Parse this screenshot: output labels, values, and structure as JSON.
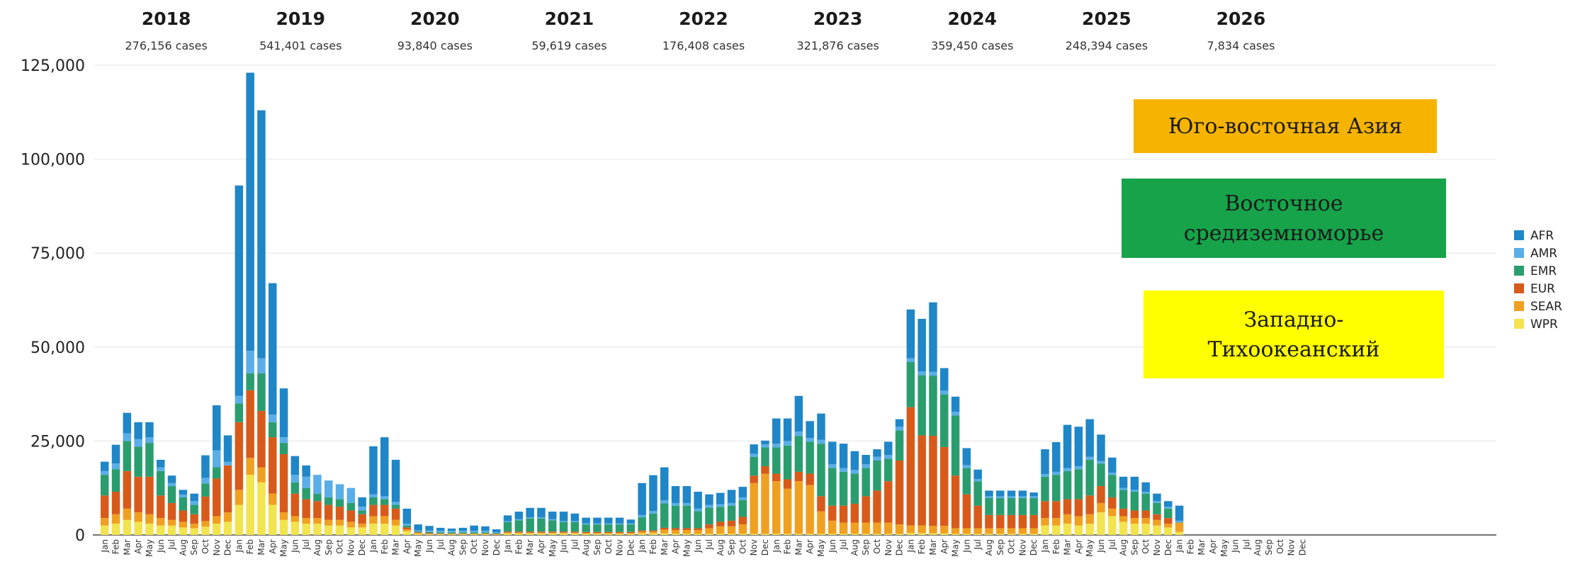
{
  "chart_data": {
    "type": "bar",
    "stacked": true,
    "ylim": [
      0,
      130000
    ],
    "yticks": [
      {
        "value": 0,
        "label": "0"
      },
      {
        "value": 25000,
        "label": "25,000"
      },
      {
        "value": 50000,
        "label": "50,000"
      },
      {
        "value": 75000,
        "label": "75,000"
      },
      {
        "value": 100000,
        "label": "100,000"
      },
      {
        "value": 125000,
        "label": "125,000"
      }
    ],
    "grid": true,
    "legend_position": "right",
    "month_labels": [
      "Jan",
      "Feb",
      "Mar",
      "Apr",
      "May",
      "Jun",
      "Jul",
      "Aug",
      "Sep",
      "Oct",
      "Nov",
      "Dec"
    ],
    "years": [
      {
        "year": "2018",
        "cases": "276,156 cases"
      },
      {
        "year": "2019",
        "cases": "541,401 cases"
      },
      {
        "year": "2020",
        "cases": "93,840 cases"
      },
      {
        "year": "2021",
        "cases": "59,619 cases"
      },
      {
        "year": "2022",
        "cases": "176,408 cases"
      },
      {
        "year": "2023",
        "cases": "321,876 cases"
      },
      {
        "year": "2024",
        "cases": "359,450 cases"
      },
      {
        "year": "2025",
        "cases": "248,394 cases"
      },
      {
        "year": "2026",
        "cases": "7,834 cases"
      }
    ],
    "series": [
      {
        "name": "WPR",
        "color": "#f2e44e",
        "values": [
          2500,
          3000,
          4000,
          3500,
          3000,
          2500,
          2500,
          2000,
          1800,
          2200,
          3000,
          3500,
          8000,
          16000,
          14000,
          8000,
          4000,
          3500,
          3000,
          3000,
          2500,
          2500,
          2000,
          2000,
          3000,
          3000,
          2500,
          1000,
          300,
          200,
          200,
          200,
          200,
          200,
          200,
          100,
          400,
          400,
          400,
          400,
          400,
          400,
          400,
          300,
          300,
          300,
          300,
          300,
          400,
          400,
          400,
          300,
          300,
          300,
          300,
          300,
          300,
          300,
          300,
          300,
          300,
          300,
          300,
          300,
          300,
          300,
          300,
          300,
          300,
          300,
          300,
          300,
          500,
          500,
          400,
          400,
          300,
          300,
          300,
          300,
          300,
          300,
          300,
          300,
          2500,
          2500,
          3000,
          2500,
          3000,
          6000,
          5000,
          3500,
          3000,
          3000,
          2500,
          2000,
          800,
          0,
          0,
          0,
          0,
          0,
          0,
          0,
          0,
          0,
          0,
          0
        ]
      },
      {
        "name": "SEAR",
        "color": "#f0a020",
        "values": [
          2000,
          2500,
          3000,
          2500,
          2500,
          2000,
          1500,
          1500,
          1200,
          1500,
          2000,
          2500,
          4000,
          4500,
          4000,
          3000,
          2000,
          1500,
          1500,
          1500,
          1500,
          1500,
          1500,
          1000,
          2000,
          2000,
          1500,
          500,
          200,
          100,
          100,
          100,
          100,
          100,
          100,
          100,
          200,
          200,
          200,
          200,
          200,
          200,
          200,
          200,
          200,
          200,
          200,
          200,
          500,
          500,
          1000,
          1000,
          1000,
          1000,
          1500,
          2000,
          2000,
          2500,
          13500,
          16000,
          14000,
          12000,
          14000,
          13000,
          6000,
          3500,
          3000,
          3000,
          3000,
          3000,
          3000,
          2500,
          2000,
          2000,
          2000,
          2000,
          1500,
          1500,
          1500,
          1500,
          1500,
          1500,
          1500,
          1500,
          2000,
          2000,
          2500,
          2500,
          2500,
          2500,
          2000,
          1500,
          1500,
          1500,
          1500,
          1000,
          2500,
          0,
          0,
          0,
          0,
          0,
          0,
          0,
          0,
          0,
          0,
          0
        ]
      },
      {
        "name": "EUR",
        "color": "#d85a1a",
        "values": [
          6000,
          6000,
          10000,
          9500,
          10000,
          6000,
          4500,
          3000,
          2500,
          6500,
          10000,
          12500,
          18000,
          18000,
          15000,
          15000,
          15500,
          6000,
          5000,
          4500,
          4000,
          3500,
          3000,
          2500,
          3000,
          3000,
          3000,
          500,
          200,
          200,
          100,
          100,
          100,
          100,
          100,
          100,
          300,
          300,
          300,
          300,
          300,
          300,
          300,
          300,
          300,
          300,
          300,
          300,
          300,
          300,
          500,
          500,
          500,
          500,
          1000,
          1200,
          1500,
          2000,
          2000,
          2000,
          2000,
          2500,
          2500,
          3000,
          4000,
          4000,
          4500,
          5000,
          7000,
          8500,
          11000,
          17000,
          31500,
          24000,
          24000,
          21000,
          14000,
          9000,
          6000,
          3500,
          3500,
          3500,
          3500,
          3500,
          4500,
          4500,
          4000,
          4500,
          5000,
          4500,
          3000,
          2000,
          2000,
          2000,
          1500,
          1500,
          0,
          0,
          0,
          0,
          0,
          0,
          0,
          0,
          0,
          0,
          0,
          0
        ]
      },
      {
        "name": "EMR",
        "color": "#2a9d6e",
        "values": [
          5500,
          6000,
          8000,
          8000,
          9000,
          6500,
          4500,
          3500,
          2500,
          3500,
          3000,
          0,
          5000,
          4500,
          10000,
          4000,
          3000,
          3000,
          3000,
          2000,
          2000,
          2000,
          2000,
          1000,
          2000,
          1500,
          1000,
          500,
          200,
          300,
          300,
          300,
          300,
          300,
          300,
          200,
          2500,
          3000,
          3500,
          3500,
          3000,
          2500,
          2500,
          2000,
          2000,
          2000,
          2000,
          2000,
          3500,
          4500,
          6500,
          6000,
          6000,
          4500,
          4500,
          4000,
          4000,
          4500,
          5000,
          5000,
          7000,
          9000,
          9500,
          8500,
          14000,
          10000,
          9000,
          8000,
          7500,
          8000,
          6000,
          8000,
          12000,
          16000,
          16000,
          14000,
          16000,
          7000,
          6500,
          4500,
          4500,
          4500,
          4500,
          4500,
          6500,
          7000,
          7500,
          8000,
          9500,
          6000,
          6000,
          5000,
          5000,
          4500,
          3000,
          2500,
          0,
          0,
          0,
          0,
          0,
          0,
          0,
          0,
          0,
          0,
          0,
          0
        ]
      },
      {
        "name": "AMR",
        "color": "#5aaee8",
        "values": [
          1000,
          1500,
          2000,
          2000,
          1500,
          1000,
          800,
          700,
          1000,
          1500,
          4500,
          1000,
          2000,
          6000,
          4000,
          2000,
          1500,
          2000,
          3000,
          5000,
          4500,
          4000,
          4000,
          1000,
          800,
          800,
          800,
          500,
          300,
          400,
          400,
          400,
          400,
          400,
          400,
          200,
          300,
          300,
          300,
          300,
          300,
          300,
          300,
          300,
          300,
          300,
          300,
          300,
          600,
          700,
          800,
          700,
          700,
          700,
          700,
          700,
          700,
          700,
          800,
          800,
          1000,
          1200,
          1200,
          1000,
          1000,
          1000,
          1000,
          1000,
          1000,
          1000,
          1000,
          1000,
          1000,
          1000,
          1000,
          1000,
          1000,
          800,
          600,
          500,
          500,
          500,
          500,
          500,
          700,
          800,
          800,
          800,
          800,
          700,
          600,
          500,
          500,
          500,
          500,
          500,
          500,
          0,
          0,
          0,
          0,
          0,
          0,
          0,
          0,
          0,
          0,
          0
        ]
      },
      {
        "name": "AFR",
        "color": "#1f86c8",
        "values": [
          2500,
          5000,
          5500,
          4500,
          4000,
          2000,
          2000,
          1300,
          2000,
          6000,
          12000,
          7000,
          56000,
          74000,
          66000,
          35000,
          13000,
          5000,
          3000,
          0,
          0,
          0,
          0,
          2500,
          12800,
          15700,
          11200,
          4000,
          1600,
          1200,
          800,
          600,
          800,
          1400,
          1200,
          800,
          1500,
          2000,
          2500,
          2500,
          2000,
          2500,
          2000,
          1500,
          1500,
          1500,
          1500,
          1000,
          8500,
          9500,
          8800,
          4500,
          4500,
          4500,
          2800,
          3000,
          3500,
          2800,
          2500,
          1000,
          6700,
          6000,
          9500,
          4500,
          7000,
          6000,
          6500,
          5000,
          2500,
          2000,
          3500,
          2000,
          13000,
          14000,
          18500,
          6000,
          4000,
          4500,
          2500,
          1500,
          1500,
          1500,
          1500,
          1000,
          6600,
          7900,
          11500,
          10500,
          10000,
          7000,
          4000,
          3000,
          3500,
          2500,
          2000,
          1500,
          4000,
          0,
          0,
          0,
          0,
          0,
          0,
          0,
          0,
          0,
          0,
          0
        ]
      }
    ],
    "annotations": [
      {
        "lines": [
          "Юго-восточная Азия"
        ],
        "color": "#f6b400"
      },
      {
        "lines": [
          "Восточное",
          "средиземноморье"
        ],
        "color": "#16a34a"
      },
      {
        "lines": [
          "Западно-",
          "Тихоокеанский"
        ],
        "color": "#ffff00"
      }
    ]
  }
}
